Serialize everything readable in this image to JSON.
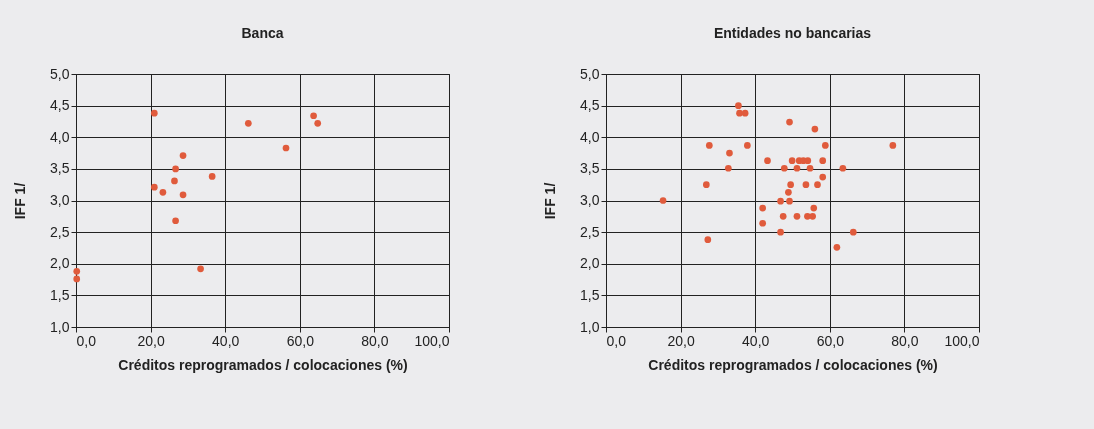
{
  "chart_data": [
    {
      "type": "scatter",
      "title": "Banca",
      "xlabel": "Créditos reprogramados / colocaciones (%)",
      "ylabel": "IFF 1/",
      "grid": true,
      "marker": "circle",
      "series": [
        {
          "color": "#e05b3c",
          "x": [
            21.0,
            46.2,
            63.7,
            64.8,
            56.3,
            28.7,
            26.7,
            36.5,
            26.4,
            21.0,
            23.3,
            28.7,
            26.7,
            33.4,
            0.2,
            0.2
          ],
          "values": [
            4.38,
            4.22,
            4.34,
            4.22,
            3.83,
            3.71,
            3.5,
            3.38,
            3.31,
            3.21,
            3.13,
            3.09,
            2.68,
            1.92,
            1.88,
            1.76
          ]
        }
      ],
      "xlim": [
        0,
        100
      ],
      "xticks": [
        {
          "value": 0,
          "label": "0,0"
        },
        {
          "value": 20,
          "label": "20,0"
        },
        {
          "value": 40,
          "label": "40,0"
        },
        {
          "value": 60,
          "label": "60,0"
        },
        {
          "value": 80,
          "label": "80,0"
        },
        {
          "value": 100,
          "label": "100,0"
        }
      ],
      "ylim": [
        1,
        5
      ],
      "yticks": [
        {
          "value": 1,
          "label": "1,0"
        },
        {
          "value": 1.5,
          "label": "1,5"
        },
        {
          "value": 2,
          "label": "2,0"
        },
        {
          "value": 2.5,
          "label": "2,5"
        },
        {
          "value": 3,
          "label": "3,0"
        },
        {
          "value": 3.5,
          "label": "3,5"
        },
        {
          "value": 4,
          "label": "4,0"
        },
        {
          "value": 4.5,
          "label": "4,5"
        },
        {
          "value": 5,
          "label": "5,0"
        }
      ]
    },
    {
      "type": "scatter",
      "title": "Entidades no bancarias",
      "xlabel": "Créditos reprogramados / colocaciones (%)",
      "ylabel": "IFF 1/",
      "grid": true,
      "marker": "circle",
      "series": [
        {
          "color": "#e05b3c",
          "x": [
            15.3,
            35.5,
            35.8,
            37.3,
            49.2,
            56.0,
            27.7,
            37.9,
            58.8,
            76.9,
            33.1,
            43.3,
            49.9,
            51.8,
            52.9,
            54.1,
            58.1,
            32.8,
            47.8,
            51.2,
            54.7,
            63.5,
            58.1,
            26.9,
            49.5,
            53.6,
            56.7,
            48.9,
            46.8,
            49.2,
            42.0,
            55.7,
            47.5,
            51.2,
            54.0,
            55.4,
            42.0,
            46.8,
            66.3,
            27.3,
            61.9
          ],
          "values": [
            3.0,
            4.5,
            4.38,
            4.38,
            4.24,
            4.13,
            3.87,
            3.87,
            3.87,
            3.87,
            3.75,
            3.63,
            3.63,
            3.63,
            3.63,
            3.63,
            3.63,
            3.51,
            3.51,
            3.51,
            3.51,
            3.51,
            3.37,
            3.25,
            3.25,
            3.25,
            3.25,
            3.13,
            2.99,
            2.99,
            2.88,
            2.88,
            2.75,
            2.75,
            2.75,
            2.75,
            2.64,
            2.5,
            2.5,
            2.38,
            2.26
          ]
        }
      ],
      "xlim": [
        0,
        100
      ],
      "xticks": [
        {
          "value": 0,
          "label": "0,0"
        },
        {
          "value": 20,
          "label": "20,0"
        },
        {
          "value": 40,
          "label": "40,0"
        },
        {
          "value": 60,
          "label": "60,0"
        },
        {
          "value": 80,
          "label": "80,0"
        },
        {
          "value": 100,
          "label": "100,0"
        }
      ],
      "ylim": [
        1,
        5
      ],
      "yticks": [
        {
          "value": 1,
          "label": "1,0"
        },
        {
          "value": 1.5,
          "label": "1,5"
        },
        {
          "value": 2,
          "label": "2,0"
        },
        {
          "value": 2.5,
          "label": "2,5"
        },
        {
          "value": 3,
          "label": "3,0"
        },
        {
          "value": 3.5,
          "label": "3,5"
        },
        {
          "value": 4,
          "label": "4,0"
        },
        {
          "value": 4.5,
          "label": "4,5"
        },
        {
          "value": 5,
          "label": "5,0"
        }
      ]
    }
  ]
}
